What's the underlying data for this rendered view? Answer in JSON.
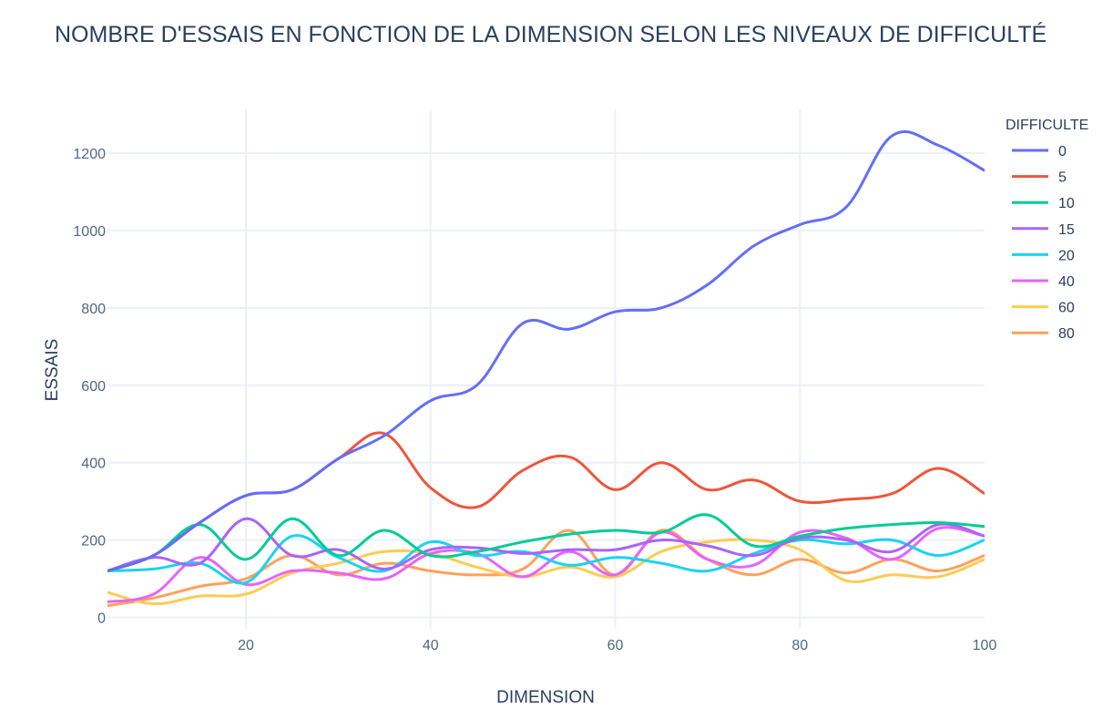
{
  "chart_data": {
    "type": "line",
    "title": "NOMBRE D'ESSAIS EN FONCTION DE LA DIMENSION SELON LES NIVEAUX DE DIFFICULTÉ",
    "xlabel": "DIMENSION",
    "ylabel": "ESSAIS",
    "xlim": [
      5,
      100
    ],
    "ylim": [
      -30,
      1320
    ],
    "x_ticks": [
      20,
      40,
      60,
      80,
      100
    ],
    "y_ticks": [
      0,
      200,
      400,
      600,
      800,
      1000,
      1200
    ],
    "grid": true,
    "legend_title": "DIFFICULTE",
    "legend_position": "top-right",
    "x": [
      5,
      10,
      15,
      20,
      25,
      30,
      35,
      40,
      45,
      50,
      55,
      60,
      65,
      70,
      75,
      80,
      85,
      90,
      95,
      100
    ],
    "series": [
      {
        "name": "0",
        "color": "#636efa",
        "values": [
          120,
          160,
          245,
          315,
          330,
          410,
          470,
          560,
          600,
          760,
          745,
          790,
          800,
          860,
          960,
          1015,
          1060,
          1245,
          1220,
          1155
        ]
      },
      {
        "name": "5",
        "color": "#ef553b",
        "values": [
          120,
          160,
          245,
          315,
          330,
          410,
          475,
          335,
          285,
          380,
          415,
          330,
          400,
          330,
          355,
          300,
          305,
          320,
          385,
          320
        ]
      },
      {
        "name": "10",
        "color": "#00cc96",
        "values": [
          120,
          160,
          240,
          150,
          255,
          160,
          225,
          160,
          170,
          195,
          215,
          225,
          220,
          265,
          185,
          210,
          230,
          240,
          245,
          235
        ]
      },
      {
        "name": "15",
        "color": "#ab63fa",
        "values": [
          120,
          155,
          140,
          255,
          160,
          175,
          125,
          175,
          180,
          165,
          175,
          175,
          200,
          185,
          160,
          205,
          200,
          170,
          240,
          210
        ]
      },
      {
        "name": "20",
        "color": "#19d3f3",
        "values": [
          120,
          125,
          140,
          90,
          210,
          155,
          120,
          195,
          160,
          170,
          135,
          155,
          140,
          120,
          165,
          200,
          190,
          200,
          160,
          200
        ]
      },
      {
        "name": "40",
        "color": "#e763fa",
        "values": [
          40,
          60,
          155,
          85,
          120,
          115,
          100,
          165,
          165,
          105,
          170,
          110,
          220,
          150,
          135,
          220,
          205,
          150,
          230,
          210
        ]
      },
      {
        "name": "60",
        "color": "#fecb52",
        "values": [
          65,
          35,
          55,
          60,
          115,
          140,
          170,
          165,
          130,
          105,
          130,
          105,
          170,
          195,
          200,
          175,
          95,
          110,
          105,
          150
        ]
      },
      {
        "name": "80",
        "color": "#ffa15a",
        "values": [
          30,
          50,
          80,
          100,
          160,
          110,
          140,
          120,
          110,
          125,
          225,
          110,
          225,
          150,
          110,
          150,
          115,
          150,
          120,
          160
        ]
      }
    ]
  }
}
